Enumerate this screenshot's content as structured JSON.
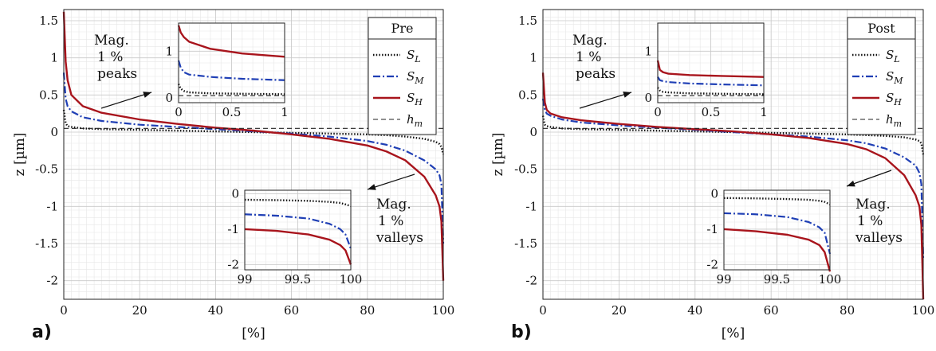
{
  "figure": {
    "panels": [
      {
        "panel_label": "a)",
        "legend_title": "Pre",
        "annotation_peaks": [
          "Mag.",
          "1 %",
          "peaks"
        ],
        "annotation_valleys": [
          "Mag.",
          "1 %",
          "valleys"
        ]
      },
      {
        "panel_label": "b)",
        "legend_title": "Post",
        "annotation_peaks": [
          "Mag.",
          "1 %",
          "peaks"
        ],
        "annotation_valleys": [
          "Mag.",
          "1 %",
          "valleys"
        ]
      }
    ]
  },
  "chart_data": [
    {
      "type": "line",
      "panel": "a)",
      "xlabel": "[%]",
      "ylabel": "z [µm]",
      "xlim": [
        0,
        100
      ],
      "ylim": [
        -2.25,
        1.65
      ],
      "xticks": [
        "0",
        "20",
        "40",
        "60",
        "80",
        "100"
      ],
      "yticks": [
        "1.5",
        "1",
        "0.5",
        "0",
        "-0.5",
        "-1",
        "-1.5",
        "-2"
      ],
      "grid": true,
      "legend_title": "Pre",
      "legend_position": "top-right",
      "colors": {
        "S_L": "#111111",
        "S_M": "#1f3fb5",
        "S_H": "#a8141c",
        "h_m": "#222222"
      },
      "series": [
        {
          "name": "S_L",
          "label_base": "S",
          "label_sub": "L",
          "style": "dotted",
          "x": [
            0,
            0.5,
            1,
            2,
            5,
            10,
            20,
            30,
            40,
            50,
            60,
            70,
            80,
            85,
            90,
            95,
            98,
            99,
            99.5,
            100
          ],
          "y": [
            0.3,
            0.12,
            0.08,
            0.07,
            0.05,
            0.04,
            0.03,
            0.02,
            0.01,
            0.0,
            -0.01,
            -0.02,
            -0.03,
            -0.04,
            -0.06,
            -0.09,
            -0.13,
            -0.16,
            -0.2,
            -0.3
          ]
        },
        {
          "name": "S_M",
          "label_base": "S",
          "label_sub": "M",
          "style": "dashdot",
          "x": [
            0,
            0.5,
            1,
            2,
            5,
            10,
            20,
            30,
            40,
            50,
            60,
            70,
            80,
            85,
            90,
            95,
            98,
            99,
            99.5,
            100
          ],
          "y": [
            0.8,
            0.45,
            0.35,
            0.28,
            0.2,
            0.15,
            0.1,
            0.07,
            0.04,
            0.01,
            -0.02,
            -0.06,
            -0.12,
            -0.17,
            -0.25,
            -0.38,
            -0.5,
            -0.58,
            -0.7,
            -1.5
          ]
        },
        {
          "name": "S_H",
          "label_base": "S",
          "label_sub": "H",
          "style": "solid",
          "x": [
            0,
            0.5,
            1,
            2,
            5,
            10,
            20,
            30,
            40,
            50,
            60,
            70,
            80,
            85,
            90,
            95,
            98,
            99,
            99.5,
            100
          ],
          "y": [
            1.62,
            0.95,
            0.7,
            0.5,
            0.35,
            0.26,
            0.17,
            0.11,
            0.06,
            0.02,
            -0.03,
            -0.09,
            -0.18,
            -0.26,
            -0.38,
            -0.6,
            -0.85,
            -1.0,
            -1.2,
            -2.0
          ]
        },
        {
          "name": "h_m",
          "label_base": "h",
          "label_sub": "m",
          "style": "dashed",
          "x": [
            0,
            100
          ],
          "y": [
            0.05,
            0.05
          ]
        }
      ],
      "insets": [
        {
          "range": "top 1 % (peaks)",
          "xlim": [
            0,
            1
          ],
          "ylim": [
            -0.1,
            1.6
          ],
          "xticks": [
            "0",
            "0.5",
            "1"
          ],
          "yticks": [
            "0",
            "1"
          ],
          "series": [
            {
              "name": "S_L",
              "x": [
                0,
                0.02,
                0.05,
                0.1,
                0.3,
                0.6,
                1
              ],
              "y": [
                0.3,
                0.2,
                0.15,
                0.12,
                0.1,
                0.09,
                0.08
              ]
            },
            {
              "name": "S_M",
              "x": [
                0,
                0.02,
                0.05,
                0.1,
                0.3,
                0.6,
                1
              ],
              "y": [
                0.8,
                0.65,
                0.55,
                0.5,
                0.45,
                0.41,
                0.38
              ]
            },
            {
              "name": "S_H",
              "x": [
                0,
                0.02,
                0.05,
                0.1,
                0.3,
                0.6,
                1
              ],
              "y": [
                1.55,
                1.4,
                1.3,
                1.2,
                1.05,
                0.95,
                0.88
              ]
            },
            {
              "name": "h_m",
              "x": [
                0,
                1
              ],
              "y": [
                0.05,
                0.05
              ]
            }
          ]
        },
        {
          "range": "bottom 1 % (valleys)",
          "xlim": [
            99,
            100
          ],
          "ylim": [
            -2.15,
            0.1
          ],
          "xticks": [
            "99",
            "99.5",
            "100"
          ],
          "yticks": [
            "0",
            "-1",
            "-2"
          ],
          "series": [
            {
              "name": "S_L",
              "x": [
                99,
                99.3,
                99.6,
                99.8,
                99.9,
                99.95,
                100
              ],
              "y": [
                -0.17,
                -0.18,
                -0.2,
                -0.23,
                -0.26,
                -0.3,
                -0.35
              ]
            },
            {
              "name": "S_M",
              "x": [
                99,
                99.3,
                99.6,
                99.8,
                99.9,
                99.95,
                100
              ],
              "y": [
                -0.58,
                -0.62,
                -0.7,
                -0.85,
                -1.0,
                -1.15,
                -1.55
              ]
            },
            {
              "name": "S_H",
              "x": [
                99,
                99.3,
                99.6,
                99.8,
                99.9,
                99.95,
                100
              ],
              "y": [
                -1.0,
                -1.05,
                -1.15,
                -1.3,
                -1.45,
                -1.6,
                -2.0
              ]
            }
          ]
        }
      ]
    },
    {
      "type": "line",
      "panel": "b)",
      "xlabel": "[%]",
      "ylabel": "z [µm]",
      "xlim": [
        0,
        100
      ],
      "ylim": [
        -2.25,
        1.65
      ],
      "xticks": [
        "0",
        "20",
        "40",
        "60",
        "80",
        "100"
      ],
      "yticks": [
        "1.5",
        "1",
        "0.5",
        "0",
        "-0.5",
        "-1",
        "-1.5",
        "-2"
      ],
      "grid": true,
      "legend_title": "Post",
      "legend_position": "top-right",
      "colors": {
        "S_L": "#111111",
        "S_M": "#1f3fb5",
        "S_H": "#a8141c",
        "h_m": "#222222"
      },
      "series": [
        {
          "name": "S_L",
          "label_base": "S",
          "label_sub": "L",
          "style": "dotted",
          "x": [
            0,
            0.5,
            1,
            2,
            5,
            10,
            20,
            30,
            40,
            50,
            60,
            70,
            80,
            85,
            90,
            95,
            98,
            99,
            99.5,
            100
          ],
          "y": [
            0.22,
            0.1,
            0.08,
            0.07,
            0.05,
            0.04,
            0.03,
            0.02,
            0.01,
            0.0,
            -0.01,
            -0.02,
            -0.03,
            -0.04,
            -0.05,
            -0.07,
            -0.1,
            -0.12,
            -0.15,
            -0.3
          ]
        },
        {
          "name": "S_M",
          "label_base": "S",
          "label_sub": "M",
          "style": "dashdot",
          "x": [
            0,
            0.5,
            1,
            2,
            5,
            10,
            20,
            30,
            40,
            50,
            60,
            70,
            80,
            85,
            90,
            95,
            98,
            99,
            99.5,
            100
          ],
          "y": [
            0.45,
            0.3,
            0.25,
            0.22,
            0.17,
            0.13,
            0.09,
            0.06,
            0.03,
            0.0,
            -0.03,
            -0.06,
            -0.11,
            -0.15,
            -0.22,
            -0.34,
            -0.45,
            -0.55,
            -0.7,
            -1.7
          ]
        },
        {
          "name": "S_H",
          "label_base": "S",
          "label_sub": "H",
          "style": "solid",
          "x": [
            0,
            0.5,
            1,
            2,
            5,
            10,
            20,
            30,
            40,
            50,
            60,
            70,
            80,
            85,
            90,
            95,
            98,
            99,
            99.5,
            100
          ],
          "y": [
            0.8,
            0.4,
            0.3,
            0.25,
            0.2,
            0.16,
            0.11,
            0.07,
            0.04,
            0.01,
            -0.03,
            -0.08,
            -0.16,
            -0.23,
            -0.35,
            -0.58,
            -0.85,
            -1.0,
            -1.25,
            -2.25
          ]
        },
        {
          "name": "h_m",
          "label_base": "h",
          "label_sub": "m",
          "style": "dashed",
          "x": [
            0,
            100
          ],
          "y": [
            0.05,
            0.05
          ]
        }
      ],
      "insets": [
        {
          "range": "top 1 % (peaks)",
          "xlim": [
            0,
            1
          ],
          "ylim": [
            -0.1,
            1.6
          ],
          "xticks": [
            "0",
            "0.5",
            "1"
          ],
          "yticks": [
            "0",
            "1"
          ],
          "series": [
            {
              "name": "S_L",
              "x": [
                0,
                0.02,
                0.05,
                0.1,
                0.3,
                0.6,
                1
              ],
              "y": [
                0.22,
                0.16,
                0.13,
                0.12,
                0.1,
                0.09,
                0.08
              ]
            },
            {
              "name": "S_M",
              "x": [
                0,
                0.02,
                0.05,
                0.1,
                0.3,
                0.6,
                1
              ],
              "y": [
                0.45,
                0.38,
                0.36,
                0.34,
                0.31,
                0.29,
                0.27
              ]
            },
            {
              "name": "S_H",
              "x": [
                0,
                0.02,
                0.05,
                0.1,
                0.3,
                0.6,
                1
              ],
              "y": [
                0.8,
                0.6,
                0.55,
                0.52,
                0.49,
                0.47,
                0.45
              ]
            },
            {
              "name": "h_m",
              "x": [
                0,
                1
              ],
              "y": [
                0.05,
                0.05
              ]
            }
          ]
        },
        {
          "range": "bottom 1 % (valleys)",
          "xlim": [
            99,
            100
          ],
          "ylim": [
            -2.15,
            0.1
          ],
          "xticks": [
            "99",
            "99.5",
            "100"
          ],
          "yticks": [
            "0",
            "-1",
            "-2"
          ],
          "series": [
            {
              "name": "S_L",
              "x": [
                99,
                99.3,
                99.6,
                99.8,
                99.9,
                99.95,
                100
              ],
              "y": [
                -0.12,
                -0.13,
                -0.15,
                -0.17,
                -0.2,
                -0.23,
                -0.3
              ]
            },
            {
              "name": "S_M",
              "x": [
                99,
                99.3,
                99.6,
                99.8,
                99.9,
                99.95,
                100
              ],
              "y": [
                -0.55,
                -0.58,
                -0.66,
                -0.8,
                -0.95,
                -1.1,
                -1.7
              ]
            },
            {
              "name": "S_H",
              "x": [
                99,
                99.3,
                99.6,
                99.8,
                99.9,
                99.95,
                100
              ],
              "y": [
                -1.0,
                -1.06,
                -1.16,
                -1.3,
                -1.45,
                -1.65,
                -2.2
              ]
            }
          ]
        }
      ]
    }
  ]
}
